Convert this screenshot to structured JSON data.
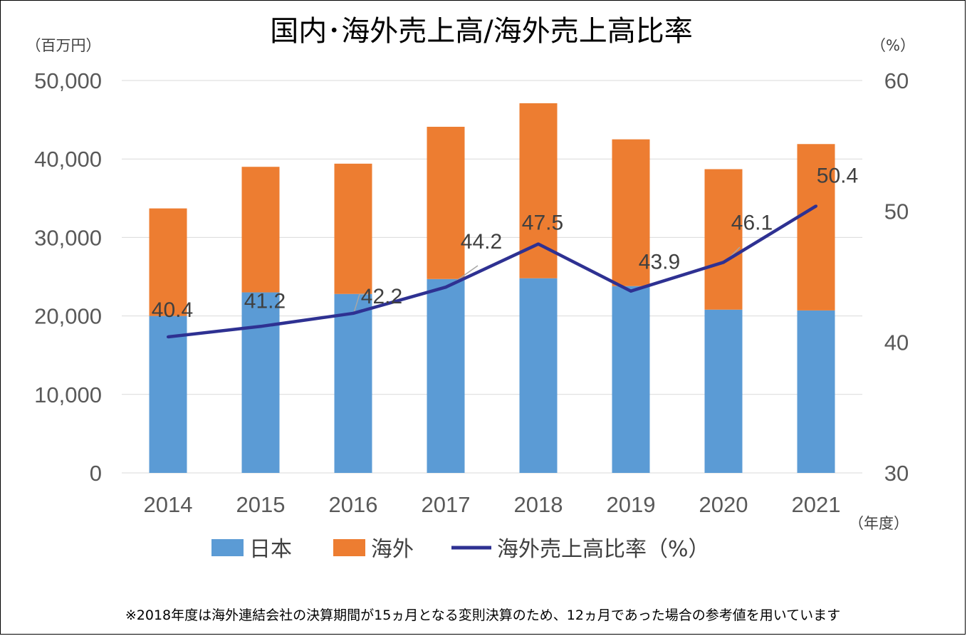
{
  "chart_data": {
    "type": "bar",
    "stacked": true,
    "title": "国内･海外売上高/海外売上高比率",
    "y_left_unit": "（百万円）",
    "y_right_unit": "（%）",
    "x_unit": "（年度）",
    "categories": [
      "2014",
      "2015",
      "2016",
      "2017",
      "2018",
      "2019",
      "2020",
      "2021"
    ],
    "ylim_left": [
      0,
      50000
    ],
    "yticks_left": [
      "0",
      "10,000",
      "20,000",
      "30,000",
      "40,000",
      "50,000"
    ],
    "ylim_right": [
      30,
      60
    ],
    "yticks_right": [
      "30",
      "40",
      "50",
      "60"
    ],
    "grid": true,
    "legend_position": "bottom",
    "series": [
      {
        "name": "日本",
        "type": "bar",
        "axis": "left",
        "color": "#5b9bd5",
        "values": [
          20000,
          23000,
          22800,
          24700,
          24800,
          23800,
          20800,
          20700
        ]
      },
      {
        "name": "海外",
        "type": "bar",
        "axis": "left",
        "color": "#ed7d31",
        "values": [
          13700,
          16000,
          16600,
          19400,
          22300,
          18700,
          17900,
          21200
        ]
      },
      {
        "name": "海外売上高比率（%）",
        "type": "line",
        "axis": "right",
        "color": "#2e3192",
        "values": [
          40.4,
          41.2,
          42.2,
          44.2,
          47.5,
          43.9,
          46.1,
          50.4
        ],
        "labels": [
          "40.4",
          "41.2",
          "42.2",
          "44.2",
          "47.5",
          "43.9",
          "46.1",
          "50.4"
        ]
      }
    ],
    "footnote": "※2018年度は海外連結会社の決算期間が15ヵ月となる変則決算のため、12ヵ月であった場合の参考値を用いています"
  }
}
